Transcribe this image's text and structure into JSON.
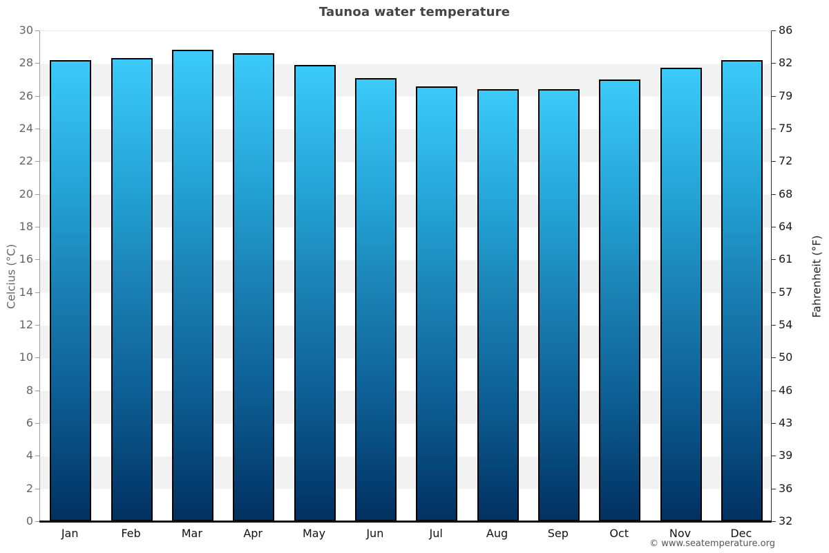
{
  "title": "Taunoa water temperature",
  "footer_credit": "© www.seatemperature.org",
  "axes": {
    "left": {
      "title": "Celcius (°C)"
    },
    "right": {
      "title": "Fahrenheit (°F)"
    }
  },
  "chart_data": {
    "type": "bar",
    "title": "Taunoa water temperature",
    "categories": [
      "Jan",
      "Feb",
      "Mar",
      "Apr",
      "May",
      "Jun",
      "Jul",
      "Aug",
      "Sep",
      "Oct",
      "Nov",
      "Dec"
    ],
    "values": [
      28.2,
      28.3,
      28.8,
      28.6,
      27.9,
      27.1,
      26.6,
      26.4,
      26.4,
      27.0,
      27.7,
      28.2
    ],
    "unit": "°C",
    "ylabel_left": "Celcius (°C)",
    "ylabel_right": "Fahrenheit (°F)",
    "ylim": [
      0,
      30
    ],
    "yticks_celsius": [
      30,
      28,
      26,
      24,
      22,
      20,
      18,
      16,
      14,
      12,
      10,
      8,
      6,
      4,
      2,
      0
    ],
    "yticks_fahrenheit": [
      86,
      82,
      79,
      75,
      72,
      68,
      64,
      61,
      57,
      54,
      50,
      46,
      43,
      39,
      36,
      32
    ],
    "grid": "alternating-horizontal-bands",
    "legend": "none",
    "colors": {
      "bar_top": "#3bcaf9",
      "bar_bottom": "#013161",
      "bar_border": "#000000",
      "band_gray": "#f2f2f2",
      "title_text": "#454545",
      "left_axis_text": "#666666",
      "right_axis_text": "#1a1a1a"
    }
  }
}
